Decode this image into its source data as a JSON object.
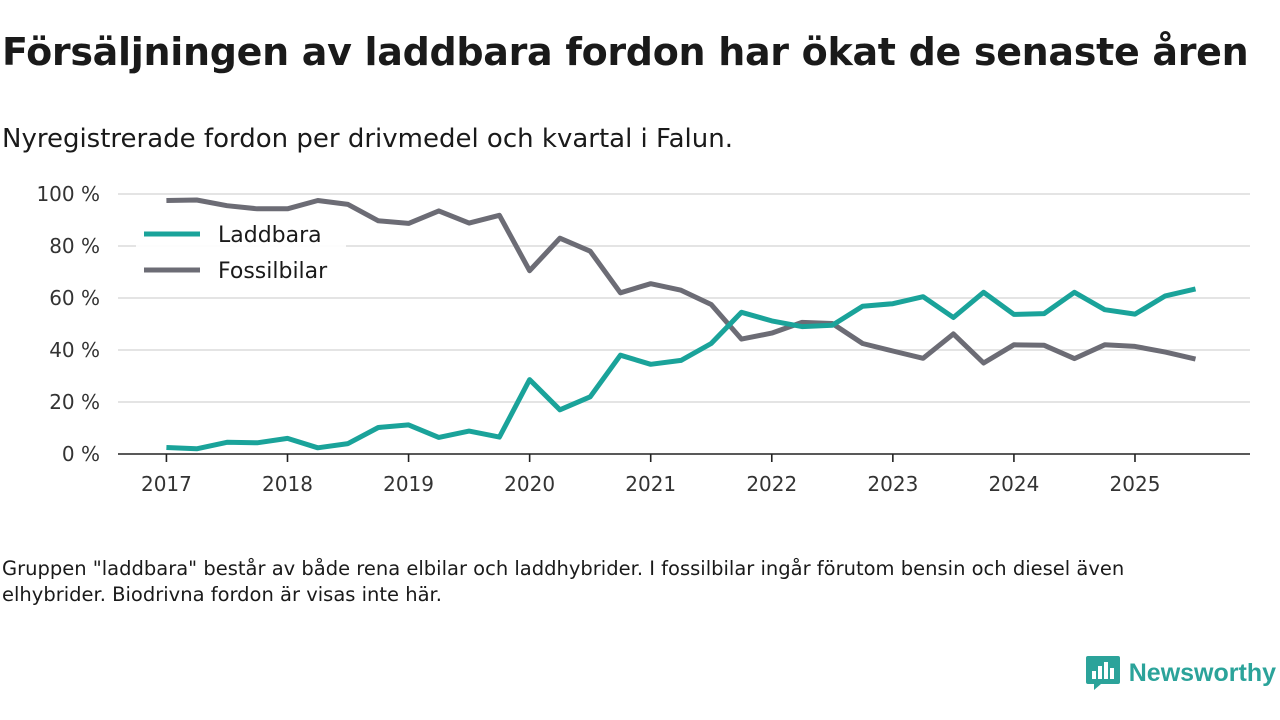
{
  "title": "Försäljningen av laddbara fordon har ökat de senaste åren",
  "subtitle": "Nyregistrerade fordon per drivmedel och kvartal i Falun.",
  "note": "Gruppen \"laddbara\" består av både rena elbilar och laddhybrider. I fossilbilar ingår förutom bensin och diesel även elhybrider. Biodrivna fordon är visas inte här.",
  "brand": {
    "name": "Newsworthy",
    "color": "#2ba39a"
  },
  "chart_data": {
    "type": "line",
    "title": "Försäljningen av laddbara fordon har ökat de senaste åren",
    "subtitle": "Nyregistrerade fordon per drivmedel och kvartal i Falun.",
    "xlabel": "",
    "ylabel": "",
    "ylim": [
      0,
      100
    ],
    "xlim": [
      2016.6,
      2025.95
    ],
    "grid": true,
    "legend_position": "top-left",
    "y_ticks": [
      0,
      20,
      40,
      60,
      80,
      100
    ],
    "y_tick_labels": [
      "0 %",
      "20 %",
      "40 %",
      "60 %",
      "80 %",
      "100 %"
    ],
    "x_ticks": [
      2017,
      2018,
      2019,
      2020,
      2021,
      2022,
      2023,
      2024,
      2025
    ],
    "x_tick_labels": [
      "2017",
      "2018",
      "2019",
      "2020",
      "2021",
      "2022",
      "2023",
      "2024",
      "2025"
    ],
    "x": [
      2017.0,
      2017.25,
      2017.5,
      2017.75,
      2018.0,
      2018.25,
      2018.5,
      2018.75,
      2019.0,
      2019.25,
      2019.5,
      2019.75,
      2020.0,
      2020.25,
      2020.5,
      2020.75,
      2021.0,
      2021.25,
      2021.5,
      2021.75,
      2022.0,
      2022.25,
      2022.5,
      2022.75,
      2023.0,
      2023.25,
      2023.5,
      2023.75,
      2024.0,
      2024.25,
      2024.5,
      2024.75,
      2025.0,
      2025.25,
      2025.5
    ],
    "series": [
      {
        "name": "Laddbara",
        "color": "#1aa39a",
        "values": [
          2.5,
          2,
          4.5,
          4.3,
          6,
          2.4,
          4,
          10.2,
          11.2,
          6.4,
          8.8,
          6.5,
          28.6,
          17,
          22,
          38,
          34.5,
          36,
          42.5,
          54.5,
          51.2,
          49,
          49.5,
          56.8,
          57.8,
          60.5,
          52.5,
          62.2,
          53.7,
          54,
          62.2,
          55.5,
          53.8,
          60.8,
          63.5
        ]
      },
      {
        "name": "Fossilbilar",
        "color": "#6c6c75",
        "values": [
          97.5,
          97.7,
          95.5,
          94.3,
          94.3,
          97.5,
          96,
          89.7,
          88.7,
          93.5,
          88.8,
          91.8,
          70.5,
          83,
          78,
          62,
          65.5,
          63,
          57.5,
          44.2,
          46.5,
          50.6,
          50.2,
          42.5,
          39.6,
          36.8,
          46.2,
          35,
          42,
          41.8,
          36.7,
          42,
          41.4,
          39.2,
          36.5
        ]
      }
    ]
  }
}
